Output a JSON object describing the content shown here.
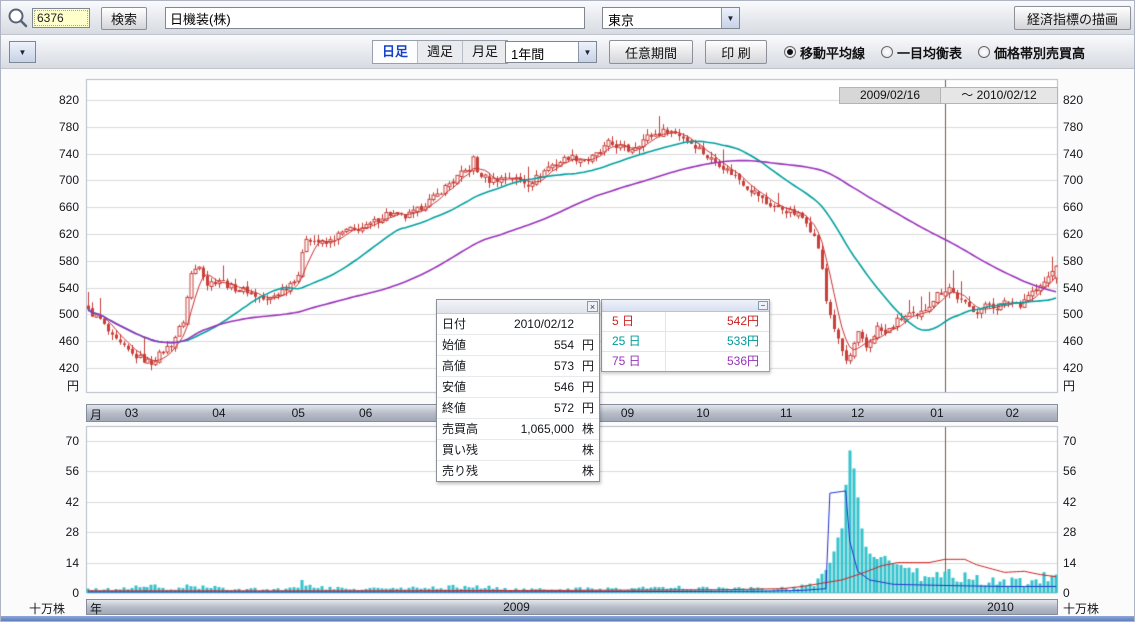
{
  "icons": {
    "dropdown_arrow": "▼",
    "close": "×",
    "minimize": "−"
  },
  "toolbar1": {
    "symbol_value": "6376",
    "search_button": "検索",
    "name_value": "日機装(株)",
    "exchange_value": "東京",
    "econ_button": "経済指標の描画"
  },
  "toolbar2": {
    "tabs": [
      {
        "label": "日足",
        "active": true
      },
      {
        "label": "週足",
        "active": false
      },
      {
        "label": "月足",
        "active": false
      }
    ],
    "period_value": "1年間",
    "custom_period_button": "任意期間",
    "print_button": "印 刷",
    "radios": [
      {
        "label": "移動平均線",
        "selected": true
      },
      {
        "label": "一目均衡表",
        "selected": false
      },
      {
        "label": "価格帯別売買高",
        "selected": false
      }
    ]
  },
  "range_label": {
    "start": "2009/02/16",
    "separator": "～",
    "end": "2010/02/12"
  },
  "tooltip": {
    "rows": [
      {
        "label": "日付",
        "value": "2010/02/12",
        "unit": ""
      },
      {
        "label": "始値",
        "value": "554",
        "unit": "円"
      },
      {
        "label": "高値",
        "value": "573",
        "unit": "円"
      },
      {
        "label": "安値",
        "value": "546",
        "unit": "円"
      },
      {
        "label": "終値",
        "value": "572",
        "unit": "円"
      },
      {
        "label": "売買高",
        "value": "1,065,000",
        "unit": "株"
      },
      {
        "label": "買い残",
        "value": "",
        "unit": "株"
      },
      {
        "label": "売り残",
        "value": "",
        "unit": "株"
      }
    ]
  },
  "legend": {
    "rows": [
      {
        "label": "5 日",
        "value": "542円",
        "color": "#cc2222"
      },
      {
        "label": "25 日",
        "value": "533円",
        "color": "#009a9a"
      },
      {
        "label": "75 日",
        "value": "536円",
        "color": "#9933bb"
      }
    ]
  },
  "month_axis": {
    "label": "月",
    "months": [
      {
        "text": "03",
        "day": 11
      },
      {
        "text": "04",
        "day": 33
      },
      {
        "text": "05",
        "day": 53
      },
      {
        "text": "06",
        "day": 70
      },
      {
        "text": "07",
        "day": 91
      },
      {
        "text": "08",
        "day": 112
      },
      {
        "text": "09",
        "day": 136
      },
      {
        "text": "10",
        "day": 155
      },
      {
        "text": "11",
        "day": 176
      },
      {
        "text": "12",
        "day": 194
      },
      {
        "text": "01",
        "day": 214
      },
      {
        "text": "02",
        "day": 233
      }
    ]
  },
  "year_axis": {
    "label": "年",
    "years": [
      {
        "text": "2009",
        "day": 108
      },
      {
        "text": "2010",
        "day": 230
      }
    ]
  },
  "chart_data": {
    "type": "candlestick",
    "period": "日足",
    "date_range": {
      "start": "2009/02/16",
      "end": "2010/02/12"
    },
    "days": 245,
    "price_axis": {
      "ticks": [
        820,
        780,
        740,
        700,
        660,
        620,
        580,
        540,
        500,
        460,
        420
      ],
      "unit": "円"
    },
    "volume_axis": {
      "ticks": [
        70,
        56,
        42,
        28,
        14,
        0
      ],
      "unit": "十万株"
    },
    "last_candle": {
      "date": "2010/02/12",
      "open": 554,
      "high": 573,
      "low": 546,
      "close": 572,
      "volume_shares": "1,065,000"
    },
    "moving_averages": [
      {
        "name": "5日",
        "window": 5,
        "last": 542,
        "color": "#cc3333"
      },
      {
        "name": "25日",
        "window": 25,
        "last": 533,
        "color": "#00a0a0"
      },
      {
        "name": "75日",
        "window": 75,
        "last": 536,
        "color": "#9933bb"
      }
    ],
    "price_anchors": [
      [
        0,
        505
      ],
      [
        3,
        492
      ],
      [
        6,
        465
      ],
      [
        9,
        450
      ],
      [
        11,
        440
      ],
      [
        14,
        432
      ],
      [
        16,
        428
      ],
      [
        19,
        445
      ],
      [
        21,
        455
      ],
      [
        24,
        490
      ],
      [
        26,
        560
      ],
      [
        28,
        575
      ],
      [
        30,
        545
      ],
      [
        33,
        552
      ],
      [
        36,
        540
      ],
      [
        40,
        535
      ],
      [
        43,
        525
      ],
      [
        45,
        520
      ],
      [
        48,
        532
      ],
      [
        50,
        540
      ],
      [
        53,
        560
      ],
      [
        55,
        615
      ],
      [
        58,
        608
      ],
      [
        60,
        605
      ],
      [
        63,
        618
      ],
      [
        65,
        625
      ],
      [
        68,
        628
      ],
      [
        70,
        630
      ],
      [
        73,
        642
      ],
      [
        75,
        650
      ],
      [
        78,
        648
      ],
      [
        80,
        645
      ],
      [
        83,
        655
      ],
      [
        85,
        665
      ],
      [
        88,
        678
      ],
      [
        90,
        690
      ],
      [
        93,
        705
      ],
      [
        96,
        718
      ],
      [
        97,
        732
      ],
      [
        98,
        712
      ],
      [
        101,
        700
      ],
      [
        104,
        703
      ],
      [
        106,
        705
      ],
      [
        109,
        700
      ],
      [
        111,
        695
      ],
      [
        114,
        708
      ],
      [
        116,
        720
      ],
      [
        119,
        728
      ],
      [
        121,
        735
      ],
      [
        124,
        732
      ],
      [
        126,
        730
      ],
      [
        129,
        742
      ],
      [
        131,
        755
      ],
      [
        134,
        750
      ],
      [
        136,
        745
      ],
      [
        139,
        755
      ],
      [
        141,
        765
      ],
      [
        144,
        770
      ],
      [
        146,
        775
      ],
      [
        149,
        768
      ],
      [
        151,
        760
      ],
      [
        154,
        748
      ],
      [
        156,
        735
      ],
      [
        159,
        725
      ],
      [
        161,
        715
      ],
      [
        164,
        702
      ],
      [
        166,
        690
      ],
      [
        169,
        678
      ],
      [
        171,
        665
      ],
      [
        174,
        660
      ],
      [
        176,
        655
      ],
      [
        179,
        648
      ],
      [
        181,
        640
      ],
      [
        183,
        615
      ],
      [
        184,
        600
      ],
      [
        185,
        565
      ],
      [
        186,
        520
      ],
      [
        188,
        480
      ],
      [
        189,
        460
      ],
      [
        191,
        430
      ],
      [
        192,
        438
      ],
      [
        194,
        470
      ],
      [
        196,
        450
      ],
      [
        199,
        480
      ],
      [
        201,
        470
      ],
      [
        204,
        490
      ],
      [
        207,
        500
      ],
      [
        209,
        495
      ],
      [
        212,
        515
      ],
      [
        214,
        530
      ],
      [
        217,
        540
      ],
      [
        219,
        525
      ],
      [
        222,
        510
      ],
      [
        224,
        505
      ],
      [
        227,
        515
      ],
      [
        229,
        510
      ],
      [
        232,
        520
      ],
      [
        235,
        515
      ],
      [
        237,
        530
      ],
      [
        240,
        540
      ],
      [
        242,
        555
      ],
      [
        244,
        572
      ]
    ],
    "volume_anchors": [
      [
        0,
        1.5
      ],
      [
        10,
        2
      ],
      [
        14,
        4
      ],
      [
        20,
        1.5
      ],
      [
        26,
        3
      ],
      [
        35,
        2
      ],
      [
        50,
        1.5
      ],
      [
        55,
        5
      ],
      [
        60,
        2
      ],
      [
        80,
        2
      ],
      [
        96,
        3
      ],
      [
        110,
        1.5
      ],
      [
        130,
        2
      ],
      [
        150,
        2.5
      ],
      [
        160,
        2
      ],
      [
        175,
        2
      ],
      [
        180,
        3
      ],
      [
        184,
        6
      ],
      [
        186,
        12
      ],
      [
        188,
        18
      ],
      [
        190,
        30
      ],
      [
        192,
        68
      ],
      [
        194,
        40
      ],
      [
        196,
        20
      ],
      [
        198,
        15
      ],
      [
        200,
        18
      ],
      [
        204,
        12
      ],
      [
        208,
        10
      ],
      [
        212,
        8
      ],
      [
        216,
        9
      ],
      [
        220,
        7
      ],
      [
        224,
        6
      ],
      [
        228,
        5
      ],
      [
        232,
        6
      ],
      [
        236,
        5
      ],
      [
        240,
        6
      ],
      [
        244,
        9
      ]
    ],
    "blue_line_anchors": [
      [
        0,
        0.5
      ],
      [
        100,
        0.5
      ],
      [
        170,
        0.8
      ],
      [
        180,
        1.2
      ],
      [
        186,
        2
      ],
      [
        187,
        46
      ],
      [
        191,
        47
      ],
      [
        192,
        24
      ],
      [
        194,
        10
      ],
      [
        197,
        6
      ],
      [
        203,
        4
      ],
      [
        215,
        3.5
      ],
      [
        230,
        3
      ],
      [
        244,
        3
      ]
    ],
    "red_line_anchors": [
      [
        0,
        1
      ],
      [
        60,
        1
      ],
      [
        120,
        1.2
      ],
      [
        160,
        1.5
      ],
      [
        175,
        2
      ],
      [
        180,
        3
      ],
      [
        185,
        4.5
      ],
      [
        190,
        6
      ],
      [
        195,
        9
      ],
      [
        200,
        12.5
      ],
      [
        204,
        14
      ],
      [
        212,
        14
      ],
      [
        216,
        15.5
      ],
      [
        221,
        15.5
      ],
      [
        224,
        13
      ],
      [
        228,
        11
      ],
      [
        231,
        9.5
      ],
      [
        236,
        10
      ],
      [
        240,
        8.5
      ],
      [
        244,
        7.5
      ]
    ],
    "year_divider_day": 216,
    "colors": {
      "candle": "#c8403a",
      "volume_bar": "#35c2cc",
      "blue_line": "#2233cc",
      "red_line": "#cc2222",
      "grid": "#dcdcdc",
      "year_divider": "#7a5c44",
      "plot_border": "#b5bac4"
    }
  }
}
